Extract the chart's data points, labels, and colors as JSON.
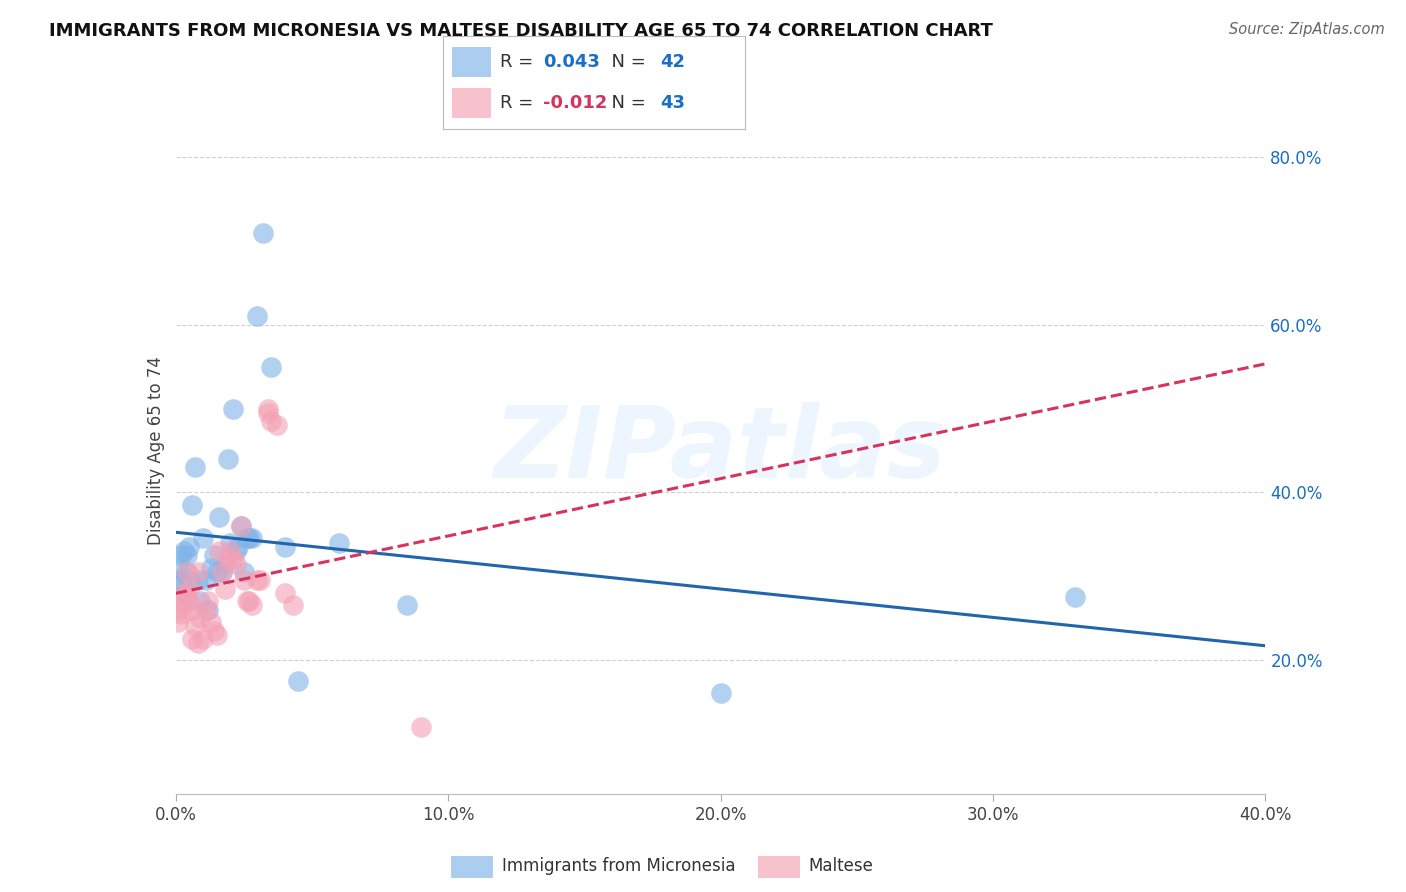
{
  "title": "IMMIGRANTS FROM MICRONESIA VS MALTESE DISABILITY AGE 65 TO 74 CORRELATION CHART",
  "source": "Source: ZipAtlas.com",
  "ylabel": "Disability Age 65 to 74",
  "xlim": [
    0.0,
    0.4
  ],
  "ylim": [
    0.04,
    0.86
  ],
  "xtick_vals": [
    0.0,
    0.1,
    0.2,
    0.3,
    0.4
  ],
  "xticklabels": [
    "0.0%",
    "10.0%",
    "20.0%",
    "30.0%",
    "40.0%"
  ],
  "ytick_right_vals": [
    0.2,
    0.4,
    0.6,
    0.8
  ],
  "ytick_right_labels": [
    "20.0%",
    "40.0%",
    "60.0%",
    "80.0%"
  ],
  "series1_name": "Immigrants from Micronesia",
  "series1_color": "#7fb3e8",
  "series1_line_color": "#2166ac",
  "series1_R": 0.043,
  "series1_N": 42,
  "series2_name": "Maltese",
  "series2_color": "#f4a0b5",
  "series2_line_color": "#d6345a",
  "series2_R": -0.012,
  "series2_N": 43,
  "watermark": "ZIPatlas",
  "blue_points_x": [
    0.001,
    0.001,
    0.002,
    0.002,
    0.003,
    0.003,
    0.004,
    0.004,
    0.005,
    0.005,
    0.006,
    0.007,
    0.008,
    0.009,
    0.01,
    0.011,
    0.012,
    0.013,
    0.014,
    0.015,
    0.016,
    0.017,
    0.018,
    0.019,
    0.02,
    0.021,
    0.022,
    0.023,
    0.024,
    0.025,
    0.026,
    0.027,
    0.028,
    0.03,
    0.032,
    0.035,
    0.04,
    0.045,
    0.06,
    0.085,
    0.2,
    0.33
  ],
  "blue_points_y": [
    0.31,
    0.295,
    0.325,
    0.29,
    0.33,
    0.28,
    0.305,
    0.325,
    0.295,
    0.335,
    0.385,
    0.43,
    0.295,
    0.27,
    0.345,
    0.295,
    0.26,
    0.31,
    0.325,
    0.305,
    0.37,
    0.305,
    0.315,
    0.44,
    0.34,
    0.5,
    0.33,
    0.335,
    0.36,
    0.305,
    0.345,
    0.345,
    0.345,
    0.61,
    0.71,
    0.55,
    0.335,
    0.175,
    0.34,
    0.265,
    0.16,
    0.275
  ],
  "pink_points_x": [
    0.001,
    0.001,
    0.002,
    0.002,
    0.003,
    0.003,
    0.004,
    0.004,
    0.005,
    0.005,
    0.006,
    0.006,
    0.007,
    0.008,
    0.008,
    0.009,
    0.01,
    0.011,
    0.012,
    0.013,
    0.014,
    0.015,
    0.016,
    0.017,
    0.018,
    0.019,
    0.02,
    0.021,
    0.022,
    0.024,
    0.025,
    0.026,
    0.027,
    0.028,
    0.03,
    0.031,
    0.034,
    0.034,
    0.035,
    0.037,
    0.04,
    0.043,
    0.09
  ],
  "pink_points_y": [
    0.26,
    0.245,
    0.27,
    0.255,
    0.265,
    0.28,
    0.305,
    0.275,
    0.285,
    0.27,
    0.26,
    0.225,
    0.24,
    0.22,
    0.305,
    0.25,
    0.225,
    0.26,
    0.27,
    0.245,
    0.235,
    0.23,
    0.33,
    0.305,
    0.285,
    0.32,
    0.33,
    0.32,
    0.315,
    0.36,
    0.295,
    0.27,
    0.27,
    0.265,
    0.295,
    0.295,
    0.5,
    0.495,
    0.485,
    0.48,
    0.28,
    0.265,
    0.12
  ],
  "background_color": "#ffffff",
  "grid_color": "#d0d0d0",
  "legend_text_color": "#1a6fc4",
  "legend_r2_color": "#d6345a"
}
